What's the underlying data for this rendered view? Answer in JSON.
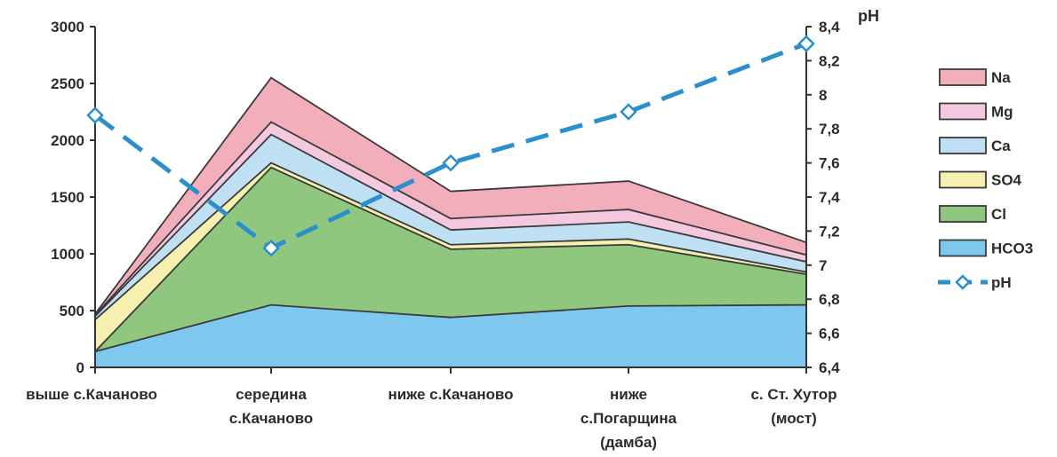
{
  "chart_data": {
    "type": "area",
    "stacked": true,
    "categories": [
      [
        "выше с.Качаново"
      ],
      [
        "середина",
        "с.Качаново"
      ],
      [
        "ниже с.Качаново"
      ],
      [
        "ниже",
        "с.Погарщина",
        "(дамба)"
      ],
      [
        "с. Ст. Хутор",
        "(мост)"
      ]
    ],
    "y_left": {
      "ylim": [
        0,
        3000
      ],
      "ticks": [
        "0",
        "500",
        "1000",
        "1500",
        "2000",
        "2500",
        "3000"
      ]
    },
    "y_right": {
      "ylabel": "pH",
      "ylim": [
        6.4,
        8.4
      ],
      "ticks": [
        "6,4",
        "6,6",
        "6,8",
        "7",
        "7,2",
        "7,4",
        "7,6",
        "7,8",
        "8",
        "8,2",
        "8,4"
      ]
    },
    "series": [
      {
        "name": "HCO3",
        "color": "#7ec8ef",
        "values": [
          140,
          550,
          440,
          540,
          550
        ]
      },
      {
        "name": "Cl",
        "color": "#8fc77f",
        "values": [
          0,
          1210,
          600,
          540,
          270
        ]
      },
      {
        "name": "SO4",
        "color": "#f5f0b0",
        "values": [
          280,
          40,
          40,
          50,
          20
        ]
      },
      {
        "name": "Ca",
        "color": "#bfe0f2",
        "values": [
          30,
          250,
          130,
          150,
          90
        ]
      },
      {
        "name": "Mg",
        "color": "#f4c8df",
        "values": [
          10,
          110,
          100,
          110,
          60
        ]
      },
      {
        "name": "Na",
        "color": "#f2aebb",
        "values": [
          10,
          390,
          240,
          250,
          110
        ]
      }
    ],
    "line_series": {
      "name": "pH",
      "color": "#2a8fcc",
      "axis": "right",
      "values": [
        7.88,
        7.1,
        7.6,
        7.9,
        8.3
      ]
    },
    "legend_position": "right",
    "grid": false
  }
}
